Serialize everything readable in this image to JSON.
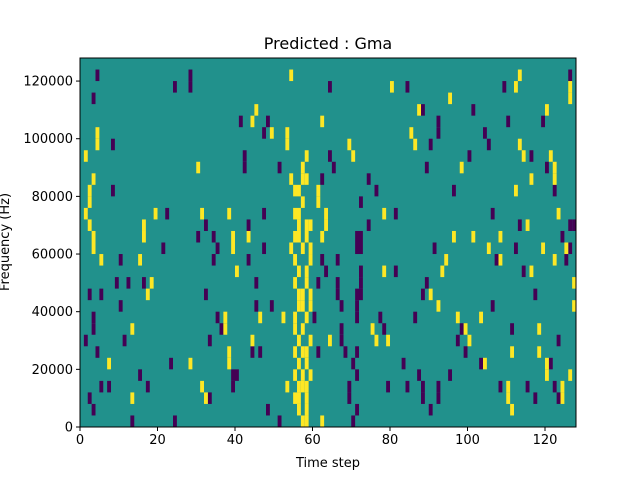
{
  "chart_data": {
    "type": "heatmap",
    "title": "Predicted : Gma",
    "xlabel": "Time step",
    "ylabel": "Frequency (Hz)",
    "xlim": [
      0,
      128
    ],
    "ylim": [
      0,
      128000
    ],
    "x_ticks": [
      {
        "value": 0,
        "label": "0"
      },
      {
        "value": 20,
        "label": "20"
      },
      {
        "value": 40,
        "label": "40"
      },
      {
        "value": 60,
        "label": "60"
      },
      {
        "value": 80,
        "label": "80"
      },
      {
        "value": 100,
        "label": "100"
      },
      {
        "value": 120,
        "label": "120"
      }
    ],
    "y_ticks": [
      {
        "value": 0,
        "label": "0"
      },
      {
        "value": 20000,
        "label": "20000"
      },
      {
        "value": 40000,
        "label": "40000"
      },
      {
        "value": 60000,
        "label": "60000"
      },
      {
        "value": 80000,
        "label": "80000"
      },
      {
        "value": 100000,
        "label": "100000"
      },
      {
        "value": 120000,
        "label": "120000"
      }
    ],
    "value_range": [
      -1,
      1
    ],
    "colormap": "viridis",
    "colors": {
      "low": "#440154",
      "mid": "#21918c",
      "high": "#fde725"
    },
    "grid": false,
    "background_value": 0,
    "cell_height": 4000,
    "cells_high": [
      [
        58,
        2000
      ],
      [
        58,
        6000
      ],
      [
        56,
        10000
      ],
      [
        58,
        14000
      ],
      [
        55,
        18000
      ],
      [
        58,
        22000
      ],
      [
        57,
        26000
      ],
      [
        59,
        30000
      ],
      [
        55,
        34000
      ],
      [
        58,
        38000
      ],
      [
        56,
        42000
      ],
      [
        57,
        46000
      ],
      [
        58,
        50000
      ],
      [
        56,
        54000
      ],
      [
        59,
        58000
      ],
      [
        57,
        62000
      ],
      [
        58,
        66000
      ],
      [
        56,
        70000
      ],
      [
        55,
        74000
      ],
      [
        57,
        78000
      ],
      [
        56,
        82000
      ],
      [
        57,
        86000
      ],
      [
        57,
        90000
      ],
      [
        58,
        94000
      ],
      [
        56,
        6000
      ],
      [
        55,
        10000
      ],
      [
        57,
        18000
      ],
      [
        56,
        22000
      ],
      [
        58,
        26000
      ],
      [
        56,
        30000
      ],
      [
        55,
        38000
      ],
      [
        59,
        42000
      ],
      [
        58,
        54000
      ],
      [
        55,
        58000
      ],
      [
        59,
        62000
      ],
      [
        56,
        66000
      ],
      [
        55,
        66000
      ],
      [
        59,
        70000
      ],
      [
        56,
        74000
      ],
      [
        55,
        82000
      ],
      [
        58,
        86000
      ],
      [
        59,
        46000
      ],
      [
        57,
        34000
      ],
      [
        58,
        10000
      ],
      [
        57,
        2000
      ],
      [
        57,
        14000
      ],
      [
        59,
        18000
      ],
      [
        56,
        14000
      ],
      [
        57,
        42000
      ],
      [
        55,
        50000
      ],
      [
        54,
        62000
      ],
      [
        58,
        70000
      ],
      [
        56,
        46000
      ],
      [
        2,
        82000
      ],
      [
        3,
        86000
      ],
      [
        1,
        74000
      ],
      [
        2,
        70000
      ],
      [
        3,
        66000
      ],
      [
        4,
        98000
      ],
      [
        4,
        102000
      ],
      [
        1,
        94000
      ],
      [
        2,
        78000
      ],
      [
        13,
        10000
      ],
      [
        16,
        66000
      ],
      [
        16,
        70000
      ],
      [
        18,
        50000
      ],
      [
        17,
        46000
      ],
      [
        19,
        74000
      ],
      [
        15,
        58000
      ],
      [
        13,
        34000
      ],
      [
        7,
        22000
      ],
      [
        5,
        58000
      ],
      [
        3,
        62000
      ],
      [
        28,
        22000
      ],
      [
        30,
        90000
      ],
      [
        31,
        14000
      ],
      [
        31,
        74000
      ],
      [
        32,
        10000
      ],
      [
        37,
        34000
      ],
      [
        37,
        38000
      ],
      [
        38,
        26000
      ],
      [
        38,
        22000
      ],
      [
        39,
        62000
      ],
      [
        38,
        74000
      ],
      [
        39,
        66000
      ],
      [
        40,
        54000
      ],
      [
        43,
        66000
      ],
      [
        45,
        110000
      ],
      [
        44,
        106000
      ],
      [
        46,
        38000
      ],
      [
        44,
        30000
      ],
      [
        49,
        102000
      ],
      [
        53,
        14000
      ],
      [
        52,
        38000
      ],
      [
        53,
        98000
      ],
      [
        54,
        86000
      ],
      [
        53,
        102000
      ],
      [
        54,
        122000
      ],
      [
        62,
        2000
      ],
      [
        55,
        26000
      ],
      [
        62,
        106000
      ],
      [
        63,
        74000
      ],
      [
        63,
        70000
      ],
      [
        61,
        82000
      ],
      [
        61,
        78000
      ],
      [
        62,
        66000
      ],
      [
        64,
        30000
      ],
      [
        70,
        94000
      ],
      [
        69,
        98000
      ],
      [
        75,
        34000
      ],
      [
        76,
        30000
      ],
      [
        78,
        74000
      ],
      [
        78,
        54000
      ],
      [
        79,
        30000
      ],
      [
        80,
        118000
      ],
      [
        85,
        102000
      ],
      [
        86,
        98000
      ],
      [
        87,
        110000
      ],
      [
        90,
        46000
      ],
      [
        92,
        42000
      ],
      [
        93,
        54000
      ],
      [
        94,
        58000
      ],
      [
        95,
        114000
      ],
      [
        96,
        66000
      ],
      [
        97,
        38000
      ],
      [
        98,
        90000
      ],
      [
        101,
        66000
      ],
      [
        100,
        30000
      ],
      [
        99,
        34000
      ],
      [
        103,
        38000
      ],
      [
        104,
        22000
      ],
      [
        105,
        62000
      ],
      [
        108,
        66000
      ],
      [
        110,
        10000
      ],
      [
        110,
        14000
      ],
      [
        111,
        6000
      ],
      [
        108,
        58000
      ],
      [
        111,
        26000
      ],
      [
        112,
        82000
      ],
      [
        113,
        122000
      ],
      [
        112,
        118000
      ],
      [
        113,
        98000
      ],
      [
        114,
        94000
      ],
      [
        115,
        70000
      ],
      [
        116,
        86000
      ],
      [
        118,
        34000
      ],
      [
        118,
        26000
      ],
      [
        119,
        62000
      ],
      [
        120,
        22000
      ],
      [
        120,
        18000
      ],
      [
        121,
        94000
      ],
      [
        122,
        58000
      ],
      [
        122,
        86000
      ],
      [
        122,
        90000
      ],
      [
        120,
        110000
      ],
      [
        123,
        74000
      ],
      [
        124,
        14000
      ],
      [
        124,
        10000
      ],
      [
        125,
        62000
      ],
      [
        126,
        18000
      ],
      [
        127,
        50000
      ],
      [
        127,
        42000
      ],
      [
        126,
        114000
      ],
      [
        126,
        118000
      ],
      [
        116,
        54000
      ]
    ],
    "cells_low": [
      [
        2,
        10000
      ],
      [
        3,
        6000
      ],
      [
        5,
        14000
      ],
      [
        1,
        30000
      ],
      [
        3,
        34000
      ],
      [
        2,
        46000
      ],
      [
        3,
        38000
      ],
      [
        5,
        46000
      ],
      [
        4,
        26000
      ],
      [
        4,
        122000
      ],
      [
        3,
        114000
      ],
      [
        8,
        98000
      ],
      [
        8,
        82000
      ],
      [
        7,
        14000
      ],
      [
        9,
        50000
      ],
      [
        12,
        50000
      ],
      [
        11,
        30000
      ],
      [
        10,
        58000
      ],
      [
        10,
        42000
      ],
      [
        13,
        2000
      ],
      [
        16,
        50000
      ],
      [
        15,
        18000
      ],
      [
        17,
        14000
      ],
      [
        21,
        62000
      ],
      [
        23,
        22000
      ],
      [
        22,
        74000
      ],
      [
        24,
        2000
      ],
      [
        24,
        118000
      ],
      [
        28,
        122000
      ],
      [
        28,
        118000
      ],
      [
        30,
        66000
      ],
      [
        32,
        70000
      ],
      [
        34,
        66000
      ],
      [
        35,
        62000
      ],
      [
        34,
        58000
      ],
      [
        33,
        10000
      ],
      [
        32,
        46000
      ],
      [
        33,
        30000
      ],
      [
        35,
        38000
      ],
      [
        36,
        34000
      ],
      [
        39,
        14000
      ],
      [
        39,
        18000
      ],
      [
        40,
        18000
      ],
      [
        42,
        90000
      ],
      [
        42,
        94000
      ],
      [
        41,
        106000
      ],
      [
        43,
        70000
      ],
      [
        43,
        58000
      ],
      [
        44,
        26000
      ],
      [
        45,
        50000
      ],
      [
        46,
        26000
      ],
      [
        45,
        42000
      ],
      [
        47,
        62000
      ],
      [
        47,
        74000
      ],
      [
        48,
        6000
      ],
      [
        49,
        42000
      ],
      [
        48,
        106000
      ],
      [
        47,
        102000
      ],
      [
        51,
        2000
      ],
      [
        51,
        90000
      ],
      [
        62,
        86000
      ],
      [
        62,
        58000
      ],
      [
        61,
        50000
      ],
      [
        60,
        38000
      ],
      [
        61,
        26000
      ],
      [
        63,
        54000
      ],
      [
        64,
        94000
      ],
      [
        65,
        90000
      ],
      [
        64,
        118000
      ],
      [
        66,
        58000
      ],
      [
        66,
        50000
      ],
      [
        66,
        46000
      ],
      [
        67,
        42000
      ],
      [
        67,
        30000
      ],
      [
        67,
        34000
      ],
      [
        68,
        26000
      ],
      [
        69,
        14000
      ],
      [
        69,
        10000
      ],
      [
        71,
        6000
      ],
      [
        70,
        2000
      ],
      [
        71,
        26000
      ],
      [
        70,
        22000
      ],
      [
        71,
        18000
      ],
      [
        71,
        38000
      ],
      [
        71,
        42000
      ],
      [
        72,
        46000
      ],
      [
        71,
        46000
      ],
      [
        72,
        50000
      ],
      [
        72,
        54000
      ],
      [
        71,
        62000
      ],
      [
        72,
        62000
      ],
      [
        71,
        66000
      ],
      [
        72,
        66000
      ],
      [
        74,
        70000
      ],
      [
        72,
        78000
      ],
      [
        74,
        86000
      ],
      [
        76,
        82000
      ],
      [
        77,
        38000
      ],
      [
        78,
        34000
      ],
      [
        79,
        14000
      ],
      [
        83,
        22000
      ],
      [
        84,
        14000
      ],
      [
        81,
        54000
      ],
      [
        81,
        74000
      ],
      [
        84,
        118000
      ],
      [
        88,
        46000
      ],
      [
        86,
        38000
      ],
      [
        87,
        18000
      ],
      [
        88,
        14000
      ],
      [
        88,
        10000
      ],
      [
        90,
        6000
      ],
      [
        92,
        10000
      ],
      [
        89,
        50000
      ],
      [
        91,
        62000
      ],
      [
        92,
        102000
      ],
      [
        92,
        106000
      ],
      [
        89,
        90000
      ],
      [
        90,
        98000
      ],
      [
        88,
        110000
      ]
    ],
    "cells_low_2": [
      [
        92,
        14000
      ],
      [
        95,
        18000
      ],
      [
        96,
        82000
      ],
      [
        97,
        30000
      ],
      [
        98,
        34000
      ],
      [
        99,
        26000
      ],
      [
        100,
        94000
      ],
      [
        101,
        110000
      ],
      [
        103,
        22000
      ],
      [
        105,
        98000
      ],
      [
        104,
        102000
      ],
      [
        106,
        42000
      ],
      [
        106,
        74000
      ],
      [
        107,
        58000
      ],
      [
        109,
        118000
      ],
      [
        110,
        106000
      ],
      [
        111,
        34000
      ],
      [
        112,
        62000
      ],
      [
        113,
        70000
      ],
      [
        114,
        54000
      ],
      [
        115,
        14000
      ],
      [
        117,
        10000
      ],
      [
        117,
        46000
      ],
      [
        119,
        106000
      ],
      [
        120,
        90000
      ],
      [
        121,
        22000
      ],
      [
        122,
        14000
      ],
      [
        123,
        10000
      ],
      [
        124,
        66000
      ],
      [
        125,
        58000
      ],
      [
        126,
        122000
      ],
      [
        126,
        70000
      ],
      [
        127,
        70000
      ],
      [
        126,
        62000
      ],
      [
        123,
        30000
      ],
      [
        122,
        82000
      ],
      [
        108,
        14000
      ],
      [
        116,
        94000
      ]
    ]
  }
}
